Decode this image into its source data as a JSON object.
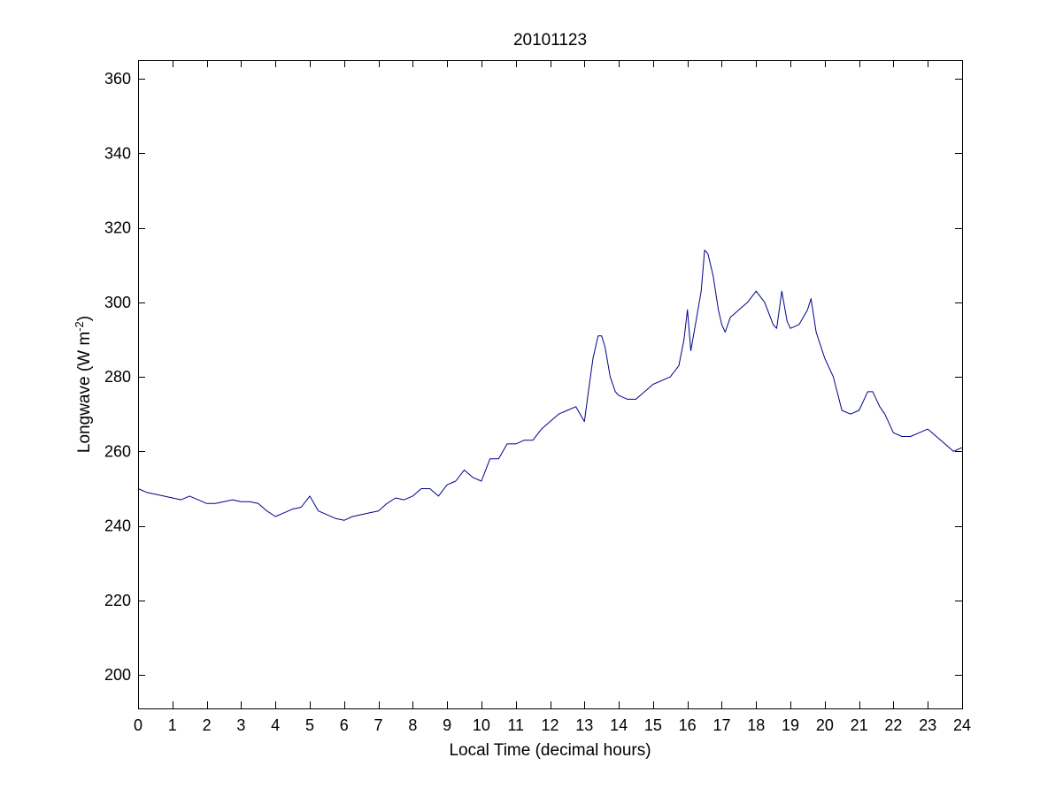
{
  "chart_data": {
    "type": "line",
    "title": "20101123",
    "xlabel": "Local Time (decimal hours)",
    "ylabel": {
      "prefix": "Longwave (W m",
      "superscript": "-2",
      "suffix": ")"
    },
    "xlim": [
      0,
      24
    ],
    "ylim": [
      191,
      365
    ],
    "xticks": [
      0,
      1,
      2,
      3,
      4,
      5,
      6,
      7,
      8,
      9,
      10,
      11,
      12,
      13,
      14,
      15,
      16,
      17,
      18,
      19,
      20,
      21,
      22,
      23,
      24
    ],
    "yticks": [
      200,
      220,
      240,
      260,
      280,
      300,
      320,
      340,
      360
    ],
    "grid": false,
    "line_color": "#00008b",
    "series": [
      {
        "x": [
          0,
          0.25,
          0.5,
          0.75,
          1,
          1.25,
          1.5,
          1.75,
          2,
          2.25,
          2.5,
          2.75,
          3,
          3.25,
          3.5,
          3.75,
          4,
          4.25,
          4.5,
          4.75,
          5,
          5.25,
          5.5,
          5.75,
          6,
          6.25,
          6.5,
          6.75,
          7,
          7.25,
          7.5,
          7.75,
          8,
          8.25,
          8.5,
          8.75,
          9,
          9.25,
          9.5,
          9.75,
          10,
          10.25,
          10.5,
          10.75,
          11,
          11.25,
          11.5,
          11.75,
          12,
          12.25,
          12.5,
          12.75,
          13,
          13.1,
          13.25,
          13.4,
          13.5,
          13.6,
          13.75,
          13.9,
          14,
          14.25,
          14.5,
          14.75,
          15,
          15.25,
          15.5,
          15.75,
          15.9,
          16,
          16.1,
          16.25,
          16.4,
          16.5,
          16.6,
          16.75,
          16.9,
          17,
          17.1,
          17.25,
          17.5,
          17.75,
          18,
          18.25,
          18.5,
          18.6,
          18.75,
          18.9,
          19,
          19.25,
          19.5,
          19.6,
          19.75,
          20,
          20.25,
          20.5,
          20.75,
          21,
          21.25,
          21.4,
          21.6,
          21.75,
          22,
          22.25,
          22.5,
          22.75,
          23,
          23.25,
          23.5,
          23.75,
          24
        ],
        "y": [
          250,
          249,
          248.5,
          248,
          247.5,
          247,
          248,
          247,
          246,
          246,
          246.5,
          247,
          246.5,
          246.5,
          246,
          244,
          242.5,
          243.5,
          244.5,
          245,
          248,
          244,
          243,
          242,
          241.5,
          242.5,
          243,
          243.5,
          244,
          246,
          247.5,
          247,
          248,
          250,
          250,
          248,
          251,
          252,
          255,
          253,
          252,
          258,
          258,
          262,
          262,
          263,
          263,
          266,
          268,
          270,
          271,
          272,
          268,
          275,
          285,
          291,
          291,
          288,
          280,
          276,
          275,
          274,
          274,
          276,
          278,
          279,
          280,
          283,
          290,
          298,
          287,
          295,
          303,
          314,
          313,
          307,
          298,
          294,
          292,
          296,
          298,
          300,
          303,
          300,
          294,
          293,
          303,
          295,
          293,
          294,
          298,
          301,
          292,
          285,
          280,
          271,
          270,
          271,
          276,
          276,
          272,
          270,
          265,
          264,
          264,
          265,
          266,
          264,
          262,
          260,
          261
        ]
      }
    ]
  }
}
